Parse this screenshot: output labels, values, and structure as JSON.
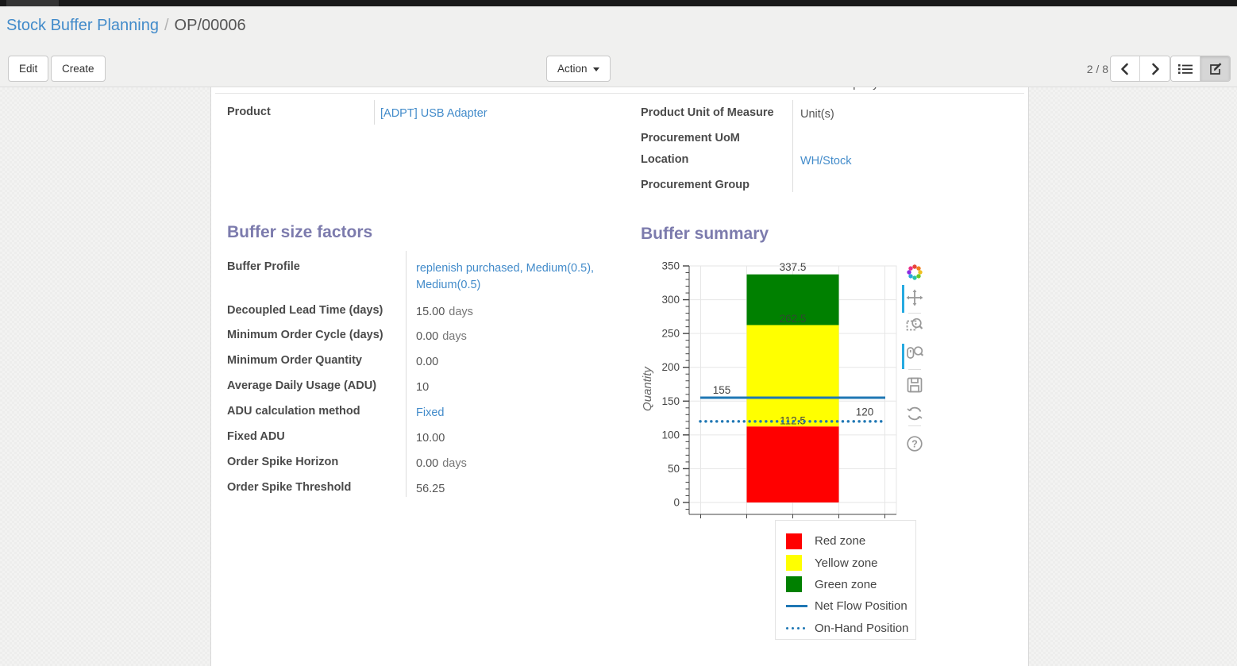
{
  "breadcrumb": {
    "parent": "Stock Buffer Planning",
    "separator": "/",
    "current": "OP/00006"
  },
  "toolbar": {
    "edit_label": "Edit",
    "create_label": "Create",
    "action_label": "Action",
    "pager_text": "2 / 8"
  },
  "form": {
    "company_partial": "Your Company",
    "product_fields": [
      {
        "label": "Product",
        "value": "[ADPT] USB Adapter",
        "link": true
      }
    ],
    "detail_fields": [
      {
        "label": "Product Unit of Measure",
        "value": "Unit(s)",
        "link": false
      },
      {
        "label": "Procurement UoM",
        "value": "",
        "link": false
      },
      {
        "label": "Location",
        "value": "WH/Stock",
        "link": true
      },
      {
        "label": "Procurement Group",
        "value": "",
        "link": false
      }
    ],
    "buffer_factors": {
      "title": "Buffer size factors",
      "fields": [
        {
          "label": "Buffer Profile",
          "value": "replenish purchased, Medium(0.5), Medium(0.5)",
          "link": true
        },
        {
          "label": "Decoupled Lead Time (days)",
          "value": "15.00",
          "unit": "days"
        },
        {
          "label": "Minimum Order Cycle (days)",
          "value": "0.00",
          "unit": "days"
        },
        {
          "label": "Minimum Order Quantity",
          "value": "0.00"
        },
        {
          "label": "Average Daily Usage (ADU)",
          "value": "10"
        },
        {
          "label": "ADU calculation method",
          "value": "Fixed",
          "link": true
        },
        {
          "label": "Fixed ADU",
          "value": "10.00"
        },
        {
          "label": "Order Spike Horizon",
          "value": "0.00",
          "unit": "days"
        },
        {
          "label": "Order Spike Threshold",
          "value": "56.25"
        }
      ]
    },
    "buffer_summary": {
      "title": "Buffer summary"
    }
  },
  "chart_data": {
    "type": "bar",
    "title": "Buffer summary",
    "ylabel": "Quantity",
    "xlabel": "",
    "ylim": [
      0,
      350
    ],
    "y_major_ticks": [
      0,
      50,
      100,
      150,
      200,
      250,
      300,
      350
    ],
    "grid": true,
    "zones": [
      {
        "name": "Red zone",
        "from": 0,
        "to": 112.5,
        "color": "#ff0000"
      },
      {
        "name": "Yellow zone",
        "from": 112.5,
        "to": 262.5,
        "color": "#ffff00"
      },
      {
        "name": "Green zone",
        "from": 262.5,
        "to": 337.5,
        "color": "#008000"
      }
    ],
    "lines": [
      {
        "name": "Net Flow Position",
        "value": 155,
        "style": "solid",
        "color": "#1f77b4"
      },
      {
        "name": "On-Hand Position",
        "value": 120,
        "style": "dotted",
        "color": "#1f77b4"
      }
    ],
    "annotations": [
      {
        "text": "337.5",
        "at": "bar-top"
      },
      {
        "text": "262.5",
        "at": "green-yellow-boundary"
      },
      {
        "text": "155",
        "at": "net-flow-line"
      },
      {
        "text": "120",
        "at": "on-hand-line"
      },
      {
        "text": "112.5",
        "at": "yellow-red-boundary"
      }
    ],
    "legend_position": "below-right",
    "legend": [
      {
        "label": "Red zone",
        "swatch": "rect",
        "color": "#ff0000"
      },
      {
        "label": "Yellow zone",
        "swatch": "rect",
        "color": "#ffff00"
      },
      {
        "label": "Green zone",
        "swatch": "rect",
        "color": "#008000"
      },
      {
        "label": "Net Flow Position",
        "swatch": "line",
        "color": "#1f77b4"
      },
      {
        "label": "On-Hand Position",
        "swatch": "dots",
        "color": "#1f77b4"
      }
    ]
  },
  "colors": {
    "accent_purple": "#7c7bad",
    "link_blue": "#428bca"
  }
}
